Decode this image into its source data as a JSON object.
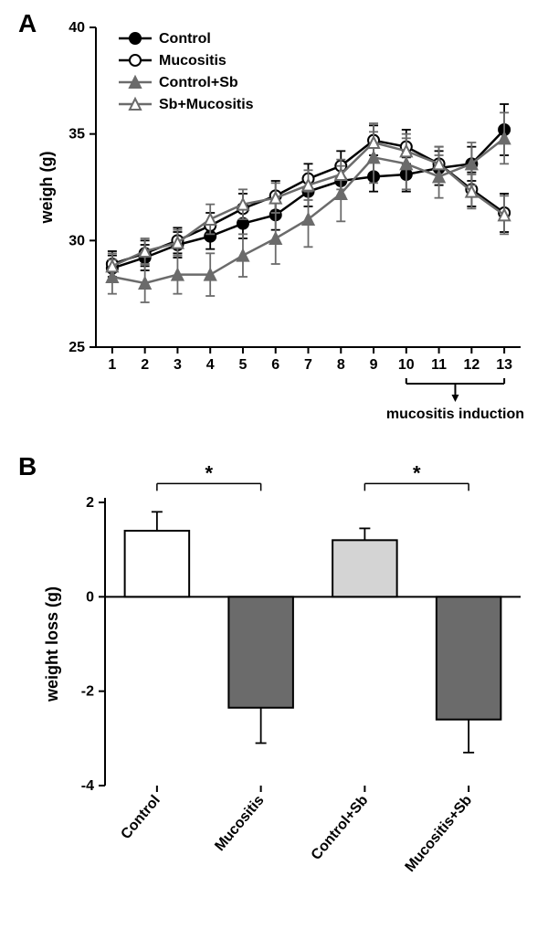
{
  "panelA": {
    "label": "A",
    "type": "line",
    "x": [
      1,
      2,
      3,
      4,
      5,
      6,
      7,
      8,
      9,
      10,
      11,
      12,
      13
    ],
    "xlim": [
      0.5,
      13.5
    ],
    "ylim": [
      25,
      40
    ],
    "ytick_step": 5,
    "ylabel": "weigh (g)",
    "annotation": "mucositis induction",
    "annotation_range": [
      10,
      13
    ],
    "title_fontsize": 18,
    "tick_fontsize": 16,
    "marker_size": 6,
    "error_cap": 5,
    "background": "#ffffff",
    "axis_color": "#000000",
    "series": [
      {
        "name": "Control",
        "marker": "circle",
        "filled": true,
        "line_color": "#000000",
        "marker_color": "#000000",
        "y": [
          28.7,
          29.2,
          29.8,
          30.2,
          30.8,
          31.2,
          32.3,
          32.8,
          33.0,
          33.1,
          33.4,
          33.6,
          35.2
        ],
        "err": [
          0.6,
          0.6,
          0.6,
          0.6,
          0.7,
          0.7,
          0.7,
          0.7,
          0.7,
          0.8,
          0.8,
          0.8,
          1.2
        ]
      },
      {
        "name": "Mucositis",
        "marker": "circle",
        "filled": false,
        "line_color": "#000000",
        "marker_color": "#000000",
        "y": [
          28.9,
          29.4,
          30.0,
          30.7,
          31.5,
          32.1,
          32.9,
          33.5,
          34.7,
          34.4,
          33.6,
          32.4,
          31.3
        ],
        "err": [
          0.6,
          0.6,
          0.6,
          0.6,
          0.7,
          0.7,
          0.7,
          0.7,
          0.7,
          0.8,
          0.8,
          0.8,
          0.9
        ]
      },
      {
        "name": "Control+Sb",
        "marker": "triangle",
        "filled": true,
        "line_color": "#6b6b6b",
        "marker_color": "#6b6b6b",
        "y": [
          28.3,
          28.0,
          28.4,
          28.4,
          29.3,
          30.1,
          31.0,
          32.2,
          33.9,
          33.6,
          33.0,
          33.6,
          34.8
        ],
        "err": [
          0.8,
          0.9,
          0.9,
          1.0,
          1.0,
          1.2,
          1.3,
          1.3,
          1.2,
          1.2,
          1.0,
          1.0,
          1.2
        ]
      },
      {
        "name": "Sb+Mucositis",
        "marker": "triangle",
        "filled": false,
        "line_color": "#6b6b6b",
        "marker_color": "#6b6b6b",
        "y": [
          28.8,
          29.5,
          29.9,
          31.0,
          31.7,
          32.0,
          32.6,
          33.1,
          34.6,
          34.2,
          33.6,
          32.3,
          31.2
        ],
        "err": [
          0.6,
          0.6,
          0.6,
          0.7,
          0.7,
          0.7,
          0.7,
          0.7,
          0.9,
          0.8,
          0.8,
          0.8,
          0.9
        ]
      }
    ],
    "legend": {
      "items": [
        "Control",
        "Mucositis",
        "Control+Sb",
        "Sb+Mucositis"
      ]
    }
  },
  "panelB": {
    "label": "B",
    "type": "bar",
    "categories": [
      "Control",
      "Mucositis",
      "Control+Sb",
      "Mucositis+Sb"
    ],
    "values": [
      1.4,
      -2.35,
      1.2,
      -2.6
    ],
    "err": [
      0.4,
      0.75,
      0.25,
      0.7
    ],
    "fill_colors": [
      "#ffffff",
      "#6b6b6b",
      "#d4d4d4",
      "#6b6b6b"
    ],
    "stroke_color": "#000000",
    "bar_width": 0.62,
    "ylim": [
      -4,
      2
    ],
    "yticks": [
      -4,
      -2,
      0,
      2
    ],
    "ylabel": "weight loss (g)",
    "significance": [
      {
        "from": 0,
        "to": 1,
        "label": "*",
        "y": 2.4
      },
      {
        "from": 2,
        "to": 3,
        "label": "*",
        "y": 2.4
      }
    ],
    "title_fontsize": 18,
    "tick_fontsize": 16,
    "background": "#ffffff",
    "axis_color": "#000000"
  }
}
